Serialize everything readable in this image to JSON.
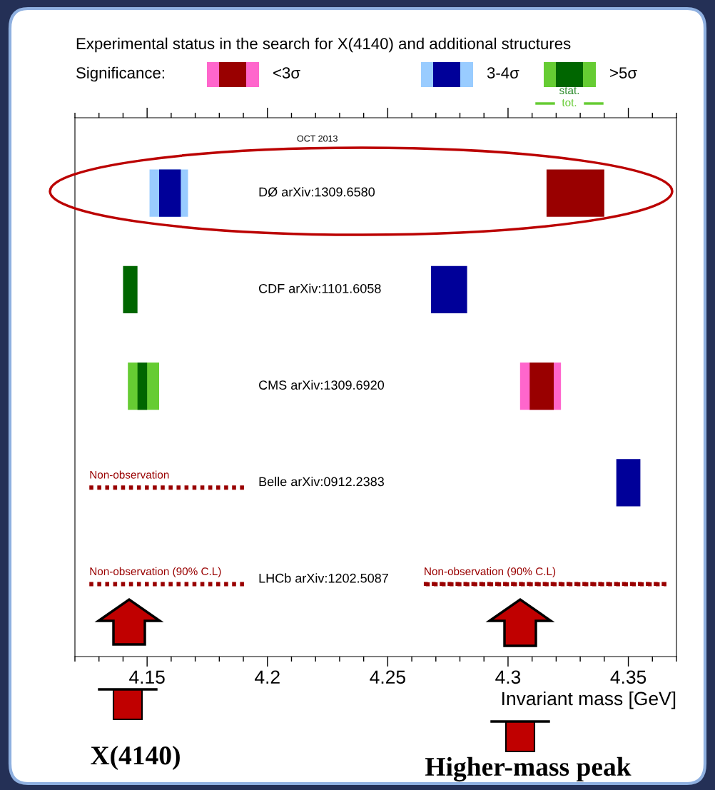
{
  "chart_data": {
    "type": "bar",
    "orientation": "horizontal",
    "title": "Experimental status in the search for X(4140) and additional structures",
    "xlabel": "Invariant mass [GeV]",
    "legend_title": "Significance:",
    "categories": [
      "DØ arXiv:1309.6580",
      "CDF arXiv:1101.6058",
      "CMS arXiv:1309.6920",
      "Belle arXiv:0912.2383",
      "LHCb arXiv:1202.5087"
    ],
    "series": [
      {
        "color": "#ff66cc",
        "base": [
          null,
          null,
          4.305,
          null,
          null
        ],
        "values": [
          null,
          null,
          0.017,
          null,
          null
        ]
      },
      {
        "name": "<3σ",
        "color": "#990000",
        "base": [
          4.316,
          null,
          4.309,
          null,
          null
        ],
        "values": [
          0.024,
          null,
          0.01,
          null,
          null
        ]
      },
      {
        "color": "#99ccff",
        "base": [
          4.151,
          null,
          null,
          null,
          null
        ],
        "values": [
          0.016,
          null,
          null,
          null,
          null
        ]
      },
      {
        "name": "3-4σ",
        "color": "#000099",
        "base": [
          4.155,
          4.268,
          null,
          4.345,
          null
        ],
        "values": [
          0.009,
          0.015,
          null,
          0.01,
          null
        ]
      },
      {
        "color": "#66cc33",
        "base": [
          null,
          null,
          4.142,
          null,
          null
        ],
        "values": [
          null,
          null,
          0.013,
          null,
          null
        ]
      },
      {
        "name": ">5σ",
        "color": "#006600",
        "base": [
          null,
          4.14,
          4.146,
          null,
          null
        ],
        "values": [
          null,
          0.006,
          0.004,
          null,
          null
        ]
      },
      {
        "color": "#990000",
        "line_style": "dotted",
        "base": [
          null,
          null,
          null,
          4.126,
          4.126
        ],
        "values": [
          null,
          null,
          null,
          0.065,
          0.065
        ]
      },
      {
        "color": "#990000",
        "line_style": "dotted",
        "base": [
          null,
          null,
          null,
          null,
          4.265
        ],
        "values": [
          null,
          null,
          null,
          null,
          0.1
        ]
      }
    ],
    "xlim": [
      4.12,
      4.37
    ],
    "xticks": [
      4.15,
      4.2,
      4.25,
      4.3,
      4.35
    ],
    "tick_labels": "x",
    "grid": false,
    "legend": "top",
    "annotations": [
      "OCT 2013",
      "stat.",
      "tot.",
      "Non-observation",
      "Non-observation (90% C.L)",
      "Non-observation (90% C.L)",
      "X(4140)",
      "Higher-mass peak"
    ]
  }
}
